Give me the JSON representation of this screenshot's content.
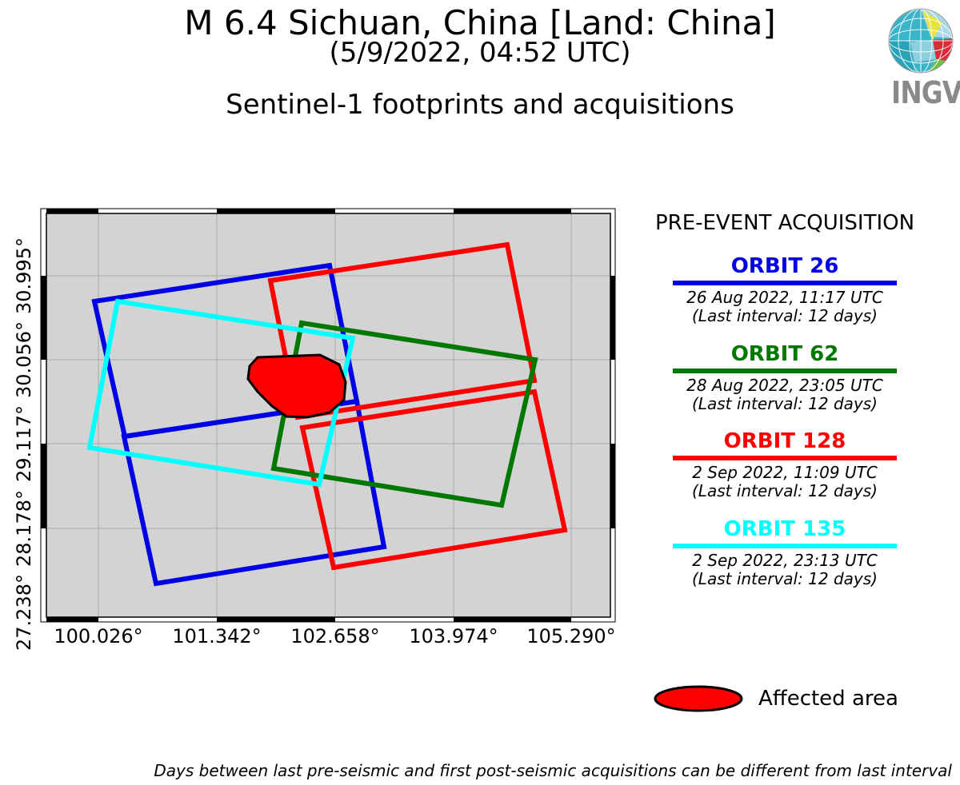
{
  "header": {
    "title": "M 6.4 Sichuan, China [Land: China]",
    "subtitle": "(5/9/2022, 04:52 UTC)",
    "heading": "Sentinel-1 footprints and acquisitions"
  },
  "logo": {
    "text": "INGV"
  },
  "map": {
    "background_color": "#d3d3d3",
    "x_ticks": [
      "100.026°",
      "101.342°",
      "102.658°",
      "103.974°",
      "105.290°"
    ],
    "y_ticks": [
      "27.238°",
      "28.178°",
      "29.117°",
      "30.056°",
      "30.995°"
    ],
    "grid": true,
    "affected_area_color": "#ff0000"
  },
  "legend": {
    "pre_event_label": "PRE-EVENT ACQUISITION",
    "orbits": [
      {
        "label": "ORBIT 26",
        "color": "#0000e6",
        "date": "26 Aug 2022, 11:17 UTC",
        "interval": "(Last interval: 12 days)"
      },
      {
        "label": "ORBIT 62",
        "color": "#007800",
        "date": "28 Aug 2022, 23:05 UTC",
        "interval": "(Last interval: 12 days)"
      },
      {
        "label": "ORBIT 128",
        "color": "#ff0000",
        "date": "2 Sep 2022, 11:09 UTC",
        "interval": "(Last interval: 12 days)"
      },
      {
        "label": "ORBIT 135",
        "color": "#00ffff",
        "date": "2 Sep 2022, 23:13 UTC",
        "interval": "(Last interval: 12 days)"
      }
    ],
    "affected_label": "Affected area"
  },
  "footnote": "Days between last pre-seismic and first post-seismic acquisitions can be different from last interval"
}
